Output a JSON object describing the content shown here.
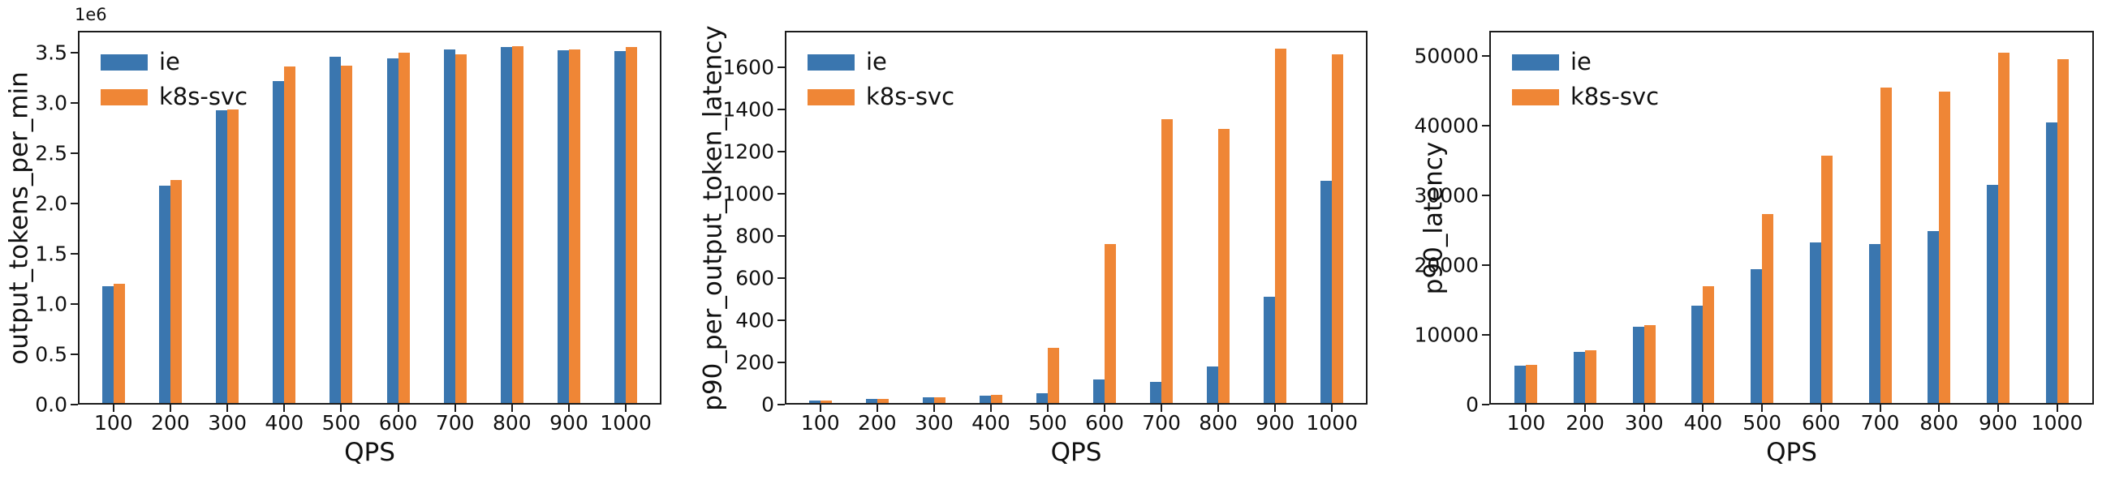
{
  "page": {
    "background": "#ffffff",
    "text_color": "#111111"
  },
  "series_colors": {
    "ie": "#3a76af",
    "k8s-svc": "#ef8636"
  },
  "chart_data": [
    {
      "type": "bar",
      "title": "",
      "xlabel": "QPS",
      "ylabel": "output_tokens_per_min",
      "y_offset_label": "1e6",
      "legend_position": "upper left",
      "grid": false,
      "categories": [
        "100",
        "200",
        "300",
        "400",
        "500",
        "600",
        "700",
        "800",
        "900",
        "1000"
      ],
      "series": [
        {
          "name": "ie",
          "color": "#3a76af",
          "values": [
            1160000,
            2160000,
            2910000,
            3200000,
            3450000,
            3430000,
            3520000,
            3545000,
            3510000,
            3505000
          ]
        },
        {
          "name": "k8s-svc",
          "color": "#ef8636",
          "values": [
            1190000,
            2220000,
            2920000,
            3350000,
            3360000,
            3485000,
            3470000,
            3550000,
            3520000,
            3540000
          ]
        }
      ],
      "ylim": [
        0,
        3720000
      ],
      "ytick_values": [
        0,
        500000,
        1000000,
        1500000,
        2000000,
        2500000,
        3000000,
        3500000
      ],
      "ytick_labels": [
        "0.0",
        "0.5",
        "1.0",
        "1.5",
        "2.0",
        "2.5",
        "3.0",
        "3.5"
      ]
    },
    {
      "type": "bar",
      "title": "",
      "xlabel": "QPS",
      "ylabel": "p90_per_output_token_latency",
      "y_offset_label": "",
      "legend_position": "upper left",
      "grid": false,
      "categories": [
        "100",
        "200",
        "300",
        "400",
        "500",
        "600",
        "700",
        "800",
        "900",
        "1000"
      ],
      "series": [
        {
          "name": "ie",
          "color": "#3a76af",
          "values": [
            10,
            20,
            27,
            35,
            48,
            112,
            100,
            173,
            505,
            1055
          ]
        },
        {
          "name": "k8s-svc",
          "color": "#ef8636",
          "values": [
            11,
            21,
            28,
            38,
            263,
            755,
            1345,
            1300,
            1680,
            1655
          ]
        }
      ],
      "ylim": [
        0,
        1773
      ],
      "ytick_values": [
        0,
        200,
        400,
        600,
        800,
        1000,
        1200,
        1400,
        1600
      ],
      "ytick_labels": [
        "0",
        "200",
        "400",
        "600",
        "800",
        "1000",
        "1200",
        "1400",
        "1600"
      ]
    },
    {
      "type": "bar",
      "title": "",
      "xlabel": "QPS",
      "ylabel": "p90_latency",
      "y_offset_label": "",
      "legend_position": "upper left",
      "grid": false,
      "categories": [
        "100",
        "200",
        "300",
        "400",
        "500",
        "600",
        "700",
        "800",
        "900",
        "1000"
      ],
      "series": [
        {
          "name": "ie",
          "color": "#3a76af",
          "values": [
            5300,
            7350,
            10900,
            13900,
            19200,
            23000,
            22800,
            24600,
            31300,
            40200
          ]
        },
        {
          "name": "k8s-svc",
          "color": "#ef8636",
          "values": [
            5450,
            7600,
            11150,
            16800,
            27100,
            35500,
            45200,
            44700,
            50200,
            49300
          ]
        }
      ],
      "ylim": [
        0,
        53600
      ],
      "ytick_values": [
        0,
        10000,
        20000,
        30000,
        40000,
        50000
      ],
      "ytick_labels": [
        "0",
        "10000",
        "20000",
        "30000",
        "40000",
        "50000"
      ]
    }
  ]
}
